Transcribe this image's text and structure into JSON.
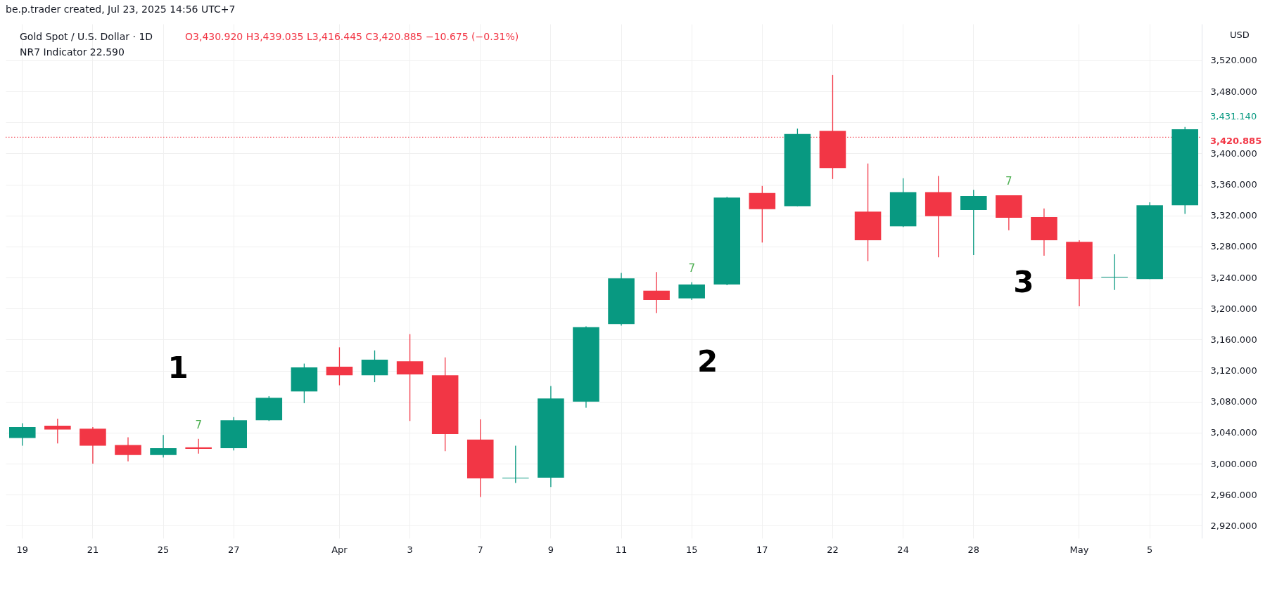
{
  "chart_data": {
    "type": "candlestick",
    "title": "Gold Spot / U.S. Dollar · 1D",
    "subtitle": "O3,430.920  H3,439.035  L3,416.445  C3,420.885  −10.675 (−0.31%)",
    "categories": [
      "19",
      null,
      "21",
      null,
      "25",
      null,
      "27",
      null,
      null,
      "Apr",
      null,
      "3",
      null,
      "7",
      null,
      "9",
      null,
      "11",
      null,
      "15",
      null,
      "17",
      null,
      "22",
      null,
      "24",
      null,
      "28",
      null,
      null,
      "May",
      null,
      "5",
      null
    ],
    "ohlc": [
      [
        3033,
        3052,
        3023,
        3047
      ],
      [
        3049,
        3058,
        3026,
        3044
      ],
      [
        3045,
        3047,
        3000,
        3023
      ],
      [
        3024,
        3034,
        3003,
        3011
      ],
      [
        3011,
        3037,
        3008,
        3020
      ],
      [
        3021,
        3032,
        3013,
        3019
      ],
      [
        3020,
        3060,
        3017,
        3056
      ],
      [
        3056,
        3087,
        3055,
        3085
      ],
      [
        3093,
        3129,
        3078,
        3124
      ],
      [
        3125,
        3150,
        3101,
        3114
      ],
      [
        3114,
        3146,
        3105,
        3134
      ],
      [
        3132,
        3167,
        3055,
        3115
      ],
      [
        3114,
        3137,
        3016,
        3038
      ],
      [
        3031,
        3057,
        2957,
        2981
      ],
      [
        2981,
        3023,
        2975,
        2982
      ],
      [
        2982,
        3100,
        2970,
        3084
      ],
      [
        3080,
        3177,
        3072,
        3176
      ],
      [
        3180,
        3246,
        3178,
        3239
      ],
      [
        3223,
        3247,
        3194,
        3211
      ],
      [
        3213,
        3234,
        3211,
        3231
      ],
      [
        3231,
        3344,
        3230,
        3343
      ],
      [
        3349,
        3358,
        3285,
        3328
      ],
      [
        3332,
        3432,
        3332,
        3425
      ],
      [
        3429,
        3501,
        3367,
        3381
      ],
      [
        3325,
        3387,
        3261,
        3288
      ],
      [
        3306,
        3368,
        3305,
        3350
      ],
      [
        3350,
        3371,
        3266,
        3319
      ],
      [
        3327,
        3353,
        3269,
        3345
      ],
      [
        3346,
        3346,
        3301,
        3317
      ],
      [
        3318,
        3329,
        3268,
        3288
      ],
      [
        3286,
        3288,
        3203,
        3238
      ],
      [
        3240,
        3270,
        3224,
        3241
      ],
      [
        3238,
        3337,
        3238,
        3333
      ],
      [
        3333,
        3434,
        3322,
        3431.14
      ]
    ],
    "colors": [
      "#089981",
      "#f23645",
      "#f23645",
      "#f23645",
      "#089981",
      "#f23645",
      "#089981",
      "#089981",
      "#089981",
      "#f23645",
      "#089981",
      "#f23645",
      "#f23645",
      "#f23645",
      "#089981",
      "#089981",
      "#089981",
      "#089981",
      "#f23645",
      "#089981",
      "#089981",
      "#f23645",
      "#089981",
      "#f23645",
      "#f23645",
      "#089981",
      "#f23645",
      "#089981",
      "#f23645",
      "#f23645",
      "#f23645",
      "#089981",
      "#089981",
      "#089981"
    ],
    "ylim": [
      2904,
      3567
    ],
    "yticks": [
      {
        "value": 2920,
        "label": "2,920.000"
      },
      {
        "value": 2960,
        "label": "2,960.000"
      },
      {
        "value": 3000,
        "label": "3,000.000"
      },
      {
        "value": 3040,
        "label": "3,040.000"
      },
      {
        "value": 3080,
        "label": "3,080.000"
      },
      {
        "value": 3120,
        "label": "3,120.000"
      },
      {
        "value": 3160,
        "label": "3,160.000"
      },
      {
        "value": 3200,
        "label": "3,200.000"
      },
      {
        "value": 3240,
        "label": "3,240.000"
      },
      {
        "value": 3280,
        "label": "3,280.000"
      },
      {
        "value": 3320,
        "label": "3,320.000"
      },
      {
        "value": 3360,
        "label": "3,360.000"
      },
      {
        "value": 3400,
        "label": "3,400.000"
      },
      {
        "value": 3440,
        "label": null
      },
      {
        "value": 3480,
        "label": "3,480.000"
      },
      {
        "value": 3520,
        "label": "3,520.000"
      }
    ],
    "ref_lines": [
      {
        "axis": "y",
        "value": 3420.885,
        "label": "3,420.885",
        "color": "#f23645",
        "line_style": "dotted"
      }
    ],
    "annotations": [
      "be.p.trader created, Jul 23, 2025 14:56 UTC+7",
      "NR7 Indicator 22.590",
      "USD",
      "3,431.140",
      "7",
      "7",
      "7",
      "1",
      "2",
      "3"
    ],
    "grid": true
  }
}
